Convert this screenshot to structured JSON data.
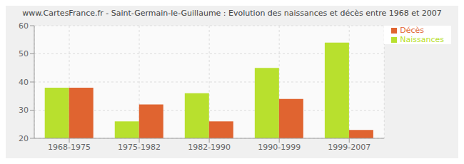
{
  "chart_data": {
    "type": "bar",
    "title": "www.CartesFrance.fr - Saint-Germain-le-Guillaume : Evolution des naissances et décès entre 1968 et 2007",
    "categories": [
      "1968-1975",
      "1975-1982",
      "1982-1990",
      "1990-1999",
      "1999-2007"
    ],
    "series": [
      {
        "name": "Naissances",
        "color": "#b8e02e",
        "values": [
          38,
          26,
          36,
          45,
          54
        ]
      },
      {
        "name": "Décès",
        "color": "#e06430",
        "values": [
          38,
          32,
          26,
          34,
          23
        ]
      }
    ],
    "ylim": [
      20,
      60
    ],
    "yticks": [
      20,
      30,
      40,
      50,
      60
    ],
    "grid": true,
    "legend": "top-right"
  }
}
